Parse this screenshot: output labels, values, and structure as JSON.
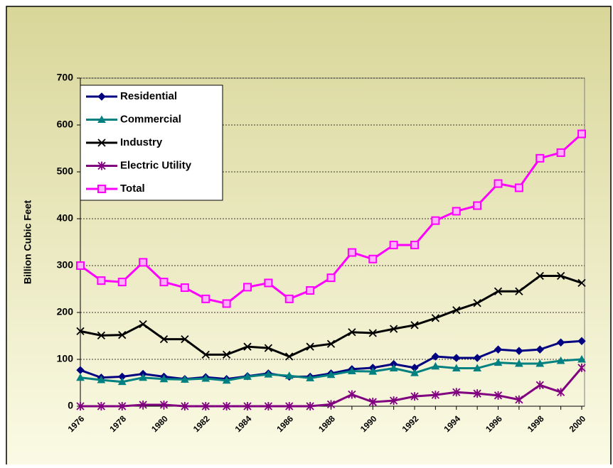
{
  "chart_data": {
    "type": "line",
    "ylabel": "Billion Cubic Feet",
    "categories": [
      "1976",
      null,
      "1978",
      null,
      "1980",
      null,
      "1982",
      null,
      "1984",
      null,
      "1986",
      null,
      "1988",
      null,
      "1990",
      null,
      "1992",
      null,
      "1994",
      null,
      "1996",
      null,
      "1998",
      null,
      "2000"
    ],
    "series": [
      {
        "name": "Residential",
        "color": "#000080",
        "marker": "diamond",
        "values": [
          77,
          61,
          63,
          69,
          63,
          58,
          62,
          58,
          64,
          70,
          63,
          63,
          70,
          79,
          82,
          90,
          82,
          106,
          103,
          103,
          121,
          118,
          121,
          136,
          139
        ]
      },
      {
        "name": "Commercial",
        "color": "#008080",
        "marker": "triangle",
        "values": [
          61,
          56,
          52,
          61,
          58,
          57,
          59,
          55,
          63,
          68,
          65,
          60,
          67,
          75,
          74,
          81,
          71,
          85,
          81,
          81,
          93,
          91,
          91,
          97,
          100
        ]
      },
      {
        "name": "Industry",
        "color": "#000000",
        "marker": "x",
        "values": [
          160,
          151,
          152,
          175,
          143,
          143,
          110,
          110,
          127,
          124,
          106,
          127,
          133,
          158,
          156,
          165,
          173,
          188,
          205,
          220,
          245,
          245,
          278,
          278,
          263
        ]
      },
      {
        "name": "Electric Utility",
        "color": "#800080",
        "marker": "star",
        "values": [
          0,
          0,
          0,
          3,
          3,
          0,
          0,
          0,
          0,
          0,
          0,
          0,
          4,
          25,
          9,
          12,
          21,
          24,
          30,
          27,
          23,
          14,
          45,
          30,
          82
        ]
      },
      {
        "name": "Total",
        "color": "#ff00ff",
        "marker": "square",
        "values": [
          300,
          268,
          265,
          307,
          265,
          253,
          229,
          219,
          254,
          263,
          229,
          247,
          274,
          328,
          314,
          344,
          344,
          396,
          416,
          428,
          475,
          466,
          529,
          541,
          581
        ]
      }
    ],
    "ylim": [
      0,
      700
    ],
    "yticks": [
      0,
      100,
      200,
      300,
      400,
      500,
      600,
      700
    ],
    "grid": true,
    "legend": "upper left"
  }
}
